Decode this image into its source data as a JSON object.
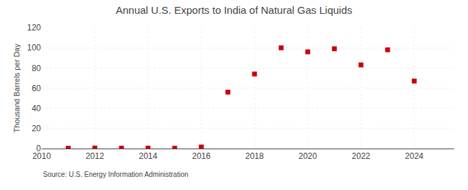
{
  "chart_data": {
    "type": "scatter",
    "title": "Annual U.S. Exports to India of Natural Gas Liquids",
    "ylabel": "Thousand Barrels per Day",
    "annotations": [
      "Source: U.S. Energy Information Administration"
    ],
    "x": [
      2011,
      2012,
      2013,
      2014,
      2015,
      2016,
      2017,
      2018,
      2019,
      2020,
      2021,
      2022,
      2023,
      2024
    ],
    "values": [
      0.3,
      0.5,
      0.4,
      0.4,
      0.3,
      1.5,
      56,
      74,
      100,
      96,
      99,
      83,
      98,
      67
    ],
    "color": "#cc0000",
    "marker": "square",
    "xlim": [
      2010,
      2025.5
    ],
    "xticks": [
      2010,
      2012,
      2014,
      2016,
      2018,
      2020,
      2022,
      2024
    ],
    "ylim": [
      0,
      120
    ],
    "yticks": [
      0,
      20,
      40,
      60,
      80,
      100,
      120
    ],
    "grid": true
  }
}
